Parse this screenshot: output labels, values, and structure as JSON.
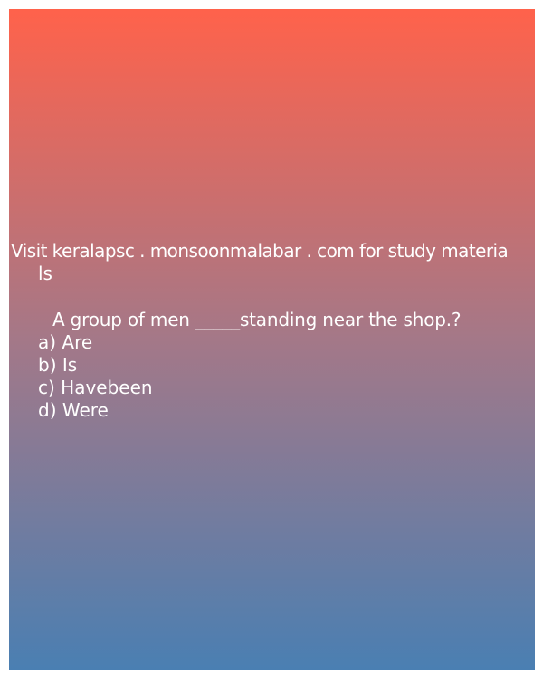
{
  "site_line_1": "Visit keralapsc . monsoonmalabar . com for study materia",
  "site_line_2": "ls",
  "question": "A group of men _____standing near the shop.?",
  "options": [
    "a) Are",
    "b) Is",
    "c) Havebeen",
    "d) Were"
  ],
  "colors": {
    "gradient_top": "#ff624b",
    "gradient_mid": "#a47888",
    "gradient_bottom": "#4a7fb2",
    "text": "#ffffff"
  }
}
